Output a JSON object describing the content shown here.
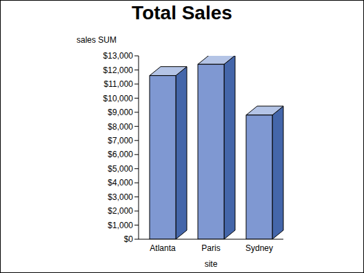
{
  "chart_data": {
    "type": "bar",
    "title": "Total Sales",
    "y_label": "sales SUM",
    "x_label": "site",
    "categories": [
      "Atlanta",
      "Paris",
      "Sydney"
    ],
    "values": [
      11600,
      12400,
      8800
    ],
    "color": "#7f98d2",
    "ylim": [
      0,
      13000
    ],
    "yticks": [
      {
        "value": 0,
        "label": "$0"
      },
      {
        "value": 1000,
        "label": "$1,000"
      },
      {
        "value": 2000,
        "label": "$2,000"
      },
      {
        "value": 3000,
        "label": "$3,000"
      },
      {
        "value": 4000,
        "label": "$4,000"
      },
      {
        "value": 5000,
        "label": "$5,000"
      },
      {
        "value": 6000,
        "label": "$6,000"
      },
      {
        "value": 7000,
        "label": "$7,000"
      },
      {
        "value": 8000,
        "label": "$8,000"
      },
      {
        "value": 9000,
        "label": "$9,000"
      },
      {
        "value": 10000,
        "label": "$10,000"
      },
      {
        "value": 11000,
        "label": "$11,000"
      },
      {
        "value": 12000,
        "label": "$12,000"
      },
      {
        "value": 13000,
        "label": "$13,000"
      }
    ]
  }
}
